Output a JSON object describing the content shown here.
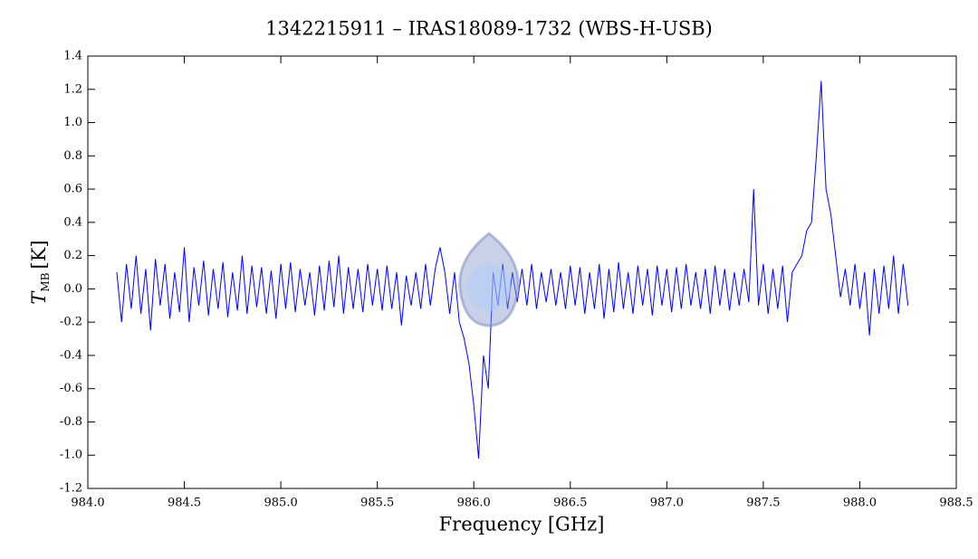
{
  "chart_data": {
    "type": "line",
    "title": "1342215911 – IRAS18089-1732 (WBS-H-USB)",
    "xlabel": "Frequency [GHz]",
    "ylabel_symbol": "T",
    "ylabel_subscript": "MB",
    "ylabel_unit": "[K]",
    "xlim": [
      984.0,
      988.5
    ],
    "ylim": [
      -1.2,
      1.4
    ],
    "xticks": [
      {
        "value": 984,
        "label": "984.0"
      },
      984.5,
      {
        "value": 985,
        "label": "985.0"
      },
      985.5,
      {
        "value": 986,
        "label": "986.0"
      },
      986.5,
      {
        "value": 987,
        "label": "987.0"
      },
      987.5,
      {
        "value": 988,
        "label": "988.0"
      },
      988.5
    ],
    "yticks": [
      -1.2,
      {
        "value": -1,
        "label": "-1.0"
      },
      -0.8,
      -0.6,
      -0.4,
      -0.2,
      {
        "value": 0,
        "label": "0.0"
      },
      0.2,
      0.4,
      0.6,
      0.8,
      {
        "value": 1,
        "label": "1.0"
      },
      1.2,
      1.4
    ],
    "series": [
      {
        "color": "#0000ff",
        "x": [
          984.15,
          984.175,
          984.2,
          984.225,
          984.25,
          984.275,
          984.3,
          984.325,
          984.35,
          984.375,
          984.4,
          984.425,
          984.45,
          984.475,
          984.5,
          984.525,
          984.55,
          984.575,
          984.6,
          984.625,
          984.65,
          984.675,
          984.7,
          984.725,
          984.75,
          984.775,
          984.8,
          984.825,
          984.85,
          984.875,
          984.9,
          984.925,
          984.95,
          984.975,
          985.0,
          985.025,
          985.05,
          985.075,
          985.1,
          985.125,
          985.15,
          985.175,
          985.2,
          985.225,
          985.25,
          985.275,
          985.3,
          985.325,
          985.35,
          985.375,
          985.4,
          985.425,
          985.45,
          985.475,
          985.5,
          985.525,
          985.55,
          985.575,
          985.6,
          985.625,
          985.65,
          985.675,
          985.7,
          985.725,
          985.75,
          985.775,
          985.8,
          985.825,
          985.85,
          985.875,
          985.9,
          985.925,
          985.95,
          985.975,
          986.0,
          986.025,
          986.05,
          986.075,
          986.1,
          986.125,
          986.15,
          986.175,
          986.2,
          986.225,
          986.25,
          986.275,
          986.3,
          986.325,
          986.35,
          986.375,
          986.4,
          986.425,
          986.45,
          986.475,
          986.5,
          986.525,
          986.55,
          986.575,
          986.6,
          986.625,
          986.65,
          986.675,
          986.7,
          986.725,
          986.75,
          986.775,
          986.8,
          986.825,
          986.85,
          986.875,
          986.9,
          986.925,
          986.95,
          986.975,
          987.0,
          987.025,
          987.05,
          987.075,
          987.1,
          987.125,
          987.15,
          987.175,
          987.2,
          987.225,
          987.25,
          987.275,
          987.3,
          987.325,
          987.35,
          987.375,
          987.4,
          987.425,
          987.45,
          987.475,
          987.5,
          987.525,
          987.55,
          987.575,
          987.6,
          987.625,
          987.65,
          987.675,
          987.7,
          987.725,
          987.75,
          987.775,
          987.8,
          987.825,
          987.85,
          987.875,
          987.9,
          987.925,
          987.95,
          987.975,
          988.0,
          988.025,
          988.05,
          988.075,
          988.1,
          988.125,
          988.15,
          988.175,
          988.2,
          988.225,
          988.25
        ],
        "values": [
          0.1,
          -0.2,
          0.15,
          -0.12,
          0.2,
          -0.15,
          0.12,
          -0.25,
          0.18,
          -0.1,
          0.15,
          -0.18,
          0.1,
          -0.14,
          0.25,
          -0.2,
          0.13,
          -0.1,
          0.17,
          -0.16,
          0.12,
          -0.12,
          0.16,
          -0.17,
          0.1,
          -0.13,
          0.2,
          -0.15,
          0.14,
          -0.11,
          0.13,
          -0.15,
          0.11,
          -0.18,
          0.15,
          -0.12,
          0.16,
          -0.14,
          0.12,
          -0.1,
          0.1,
          -0.16,
          0.14,
          -0.13,
          0.17,
          -0.11,
          0.2,
          -0.15,
          0.13,
          -0.12,
          0.12,
          -0.14,
          0.15,
          -0.1,
          0.12,
          -0.13,
          0.14,
          -0.12,
          0.1,
          -0.22,
          0.08,
          -0.1,
          0.1,
          -0.12,
          0.15,
          -0.1,
          0.12,
          0.25,
          0.1,
          -0.15,
          0.1,
          -0.2,
          -0.3,
          -0.45,
          -0.7,
          -1.02,
          -0.4,
          -0.6,
          0.1,
          -0.1,
          0.15,
          -0.12,
          0.1,
          -0.08,
          0.12,
          -0.1,
          0.15,
          -0.12,
          0.1,
          -0.08,
          0.12,
          -0.1,
          0.1,
          -0.12,
          0.14,
          -0.1,
          0.13,
          -0.15,
          0.1,
          -0.12,
          0.15,
          -0.18,
          0.12,
          -0.14,
          0.16,
          -0.12,
          0.1,
          -0.15,
          0.14,
          -0.1,
          0.12,
          -0.16,
          0.14,
          -0.1,
          0.12,
          -0.14,
          0.13,
          -0.12,
          0.15,
          -0.1,
          0.1,
          -0.12,
          0.12,
          -0.15,
          0.14,
          -0.1,
          0.12,
          -0.13,
          0.1,
          -0.1,
          0.12,
          -0.08,
          0.6,
          -0.1,
          0.15,
          -0.15,
          0.12,
          -0.12,
          0.14,
          -0.2,
          0.1,
          0.15,
          0.2,
          0.35,
          0.4,
          0.8,
          1.25,
          0.6,
          0.45,
          0.2,
          -0.05,
          0.12,
          -0.1,
          0.15,
          -0.12,
          0.1,
          -0.28,
          0.12,
          -0.15,
          0.14,
          -0.12,
          0.2,
          -0.15,
          0.15,
          -0.1
        ]
      }
    ]
  }
}
